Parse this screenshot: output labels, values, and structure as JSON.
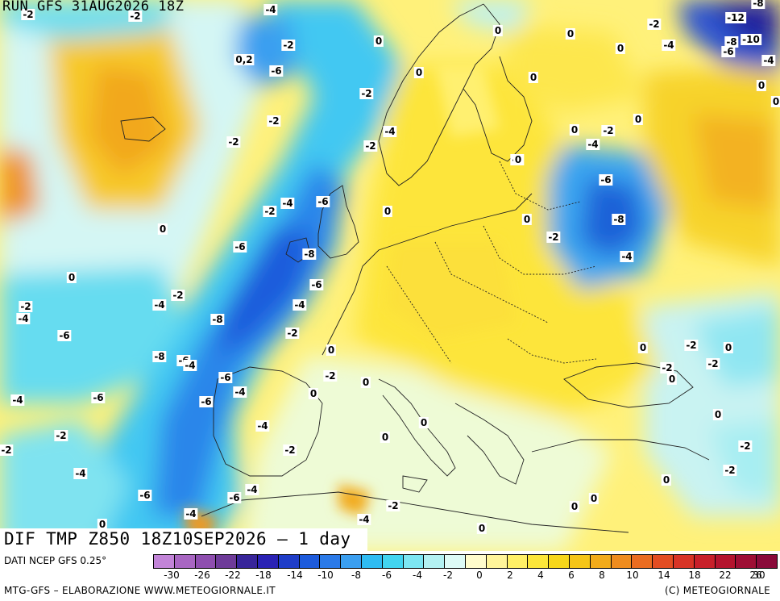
{
  "header": {
    "run_title": "RUN GFS 31AUG2026 18Z"
  },
  "map": {
    "caption": "DIF TMP Z850 18Z10SEP2026 – 1 day",
    "contour_labels": [
      {
        "text": "-2"
      },
      {
        "text": "-2"
      },
      {
        "text": "-4"
      },
      {
        "text": "-8"
      },
      {
        "text": "-12"
      },
      {
        "text": "-8"
      },
      {
        "text": "-10"
      },
      {
        "text": "-6"
      },
      {
        "text": "-4"
      },
      {
        "text": "-2"
      },
      {
        "text": "0"
      },
      {
        "text": "0"
      },
      {
        "text": "0"
      },
      {
        "text": "-2"
      },
      {
        "text": "-4"
      },
      {
        "text": "0"
      },
      {
        "text": "0"
      },
      {
        "text": "0"
      },
      {
        "text": "0,2"
      },
      {
        "text": "-6"
      },
      {
        "text": "0"
      },
      {
        "text": "-2"
      },
      {
        "text": "-2"
      },
      {
        "text": "0"
      },
      {
        "text": "-2"
      },
      {
        "text": "-4"
      },
      {
        "text": "0"
      },
      {
        "text": "-2"
      },
      {
        "text": "0"
      },
      {
        "text": "-2"
      },
      {
        "text": "-4"
      },
      {
        "text": "-2"
      },
      {
        "text": "0"
      },
      {
        "text": "-6"
      },
      {
        "text": "-6"
      },
      {
        "text": "-4"
      },
      {
        "text": "-2"
      },
      {
        "text": "0"
      },
      {
        "text": "0"
      },
      {
        "text": "-8"
      },
      {
        "text": "-2"
      },
      {
        "text": "0"
      },
      {
        "text": "-6"
      },
      {
        "text": "-8"
      },
      {
        "text": "-4"
      },
      {
        "text": "0"
      },
      {
        "text": "-6"
      },
      {
        "text": "-2"
      },
      {
        "text": "-4"
      },
      {
        "text": "-2"
      },
      {
        "text": "-4"
      },
      {
        "text": "-4"
      },
      {
        "text": "-8"
      },
      {
        "text": "-6"
      },
      {
        "text": "-2"
      },
      {
        "text": "-8"
      },
      {
        "text": "-6"
      },
      {
        "text": "-4"
      },
      {
        "text": "0"
      },
      {
        "text": "0"
      },
      {
        "text": "-2"
      },
      {
        "text": "0"
      },
      {
        "text": "-2"
      },
      {
        "text": "-6"
      },
      {
        "text": "-2"
      },
      {
        "text": "-2"
      },
      {
        "text": "-4"
      },
      {
        "text": "-6"
      },
      {
        "text": "-4"
      },
      {
        "text": "0"
      },
      {
        "text": "0"
      },
      {
        "text": "0"
      },
      {
        "text": "0"
      },
      {
        "text": "-2"
      },
      {
        "text": "-2"
      },
      {
        "text": "-4"
      },
      {
        "text": "-6"
      },
      {
        "text": "-4"
      },
      {
        "text": "0"
      },
      {
        "text": "0"
      },
      {
        "text": "-2"
      },
      {
        "text": "-2"
      },
      {
        "text": "-4"
      },
      {
        "text": "-6"
      },
      {
        "text": "-2"
      },
      {
        "text": "-6"
      },
      {
        "text": "-4"
      },
      {
        "text": "0"
      },
      {
        "text": "0"
      },
      {
        "text": "0"
      },
      {
        "text": "-2"
      },
      {
        "text": "0"
      },
      {
        "text": "0"
      },
      {
        "text": "-4"
      }
    ]
  },
  "legend": {
    "source": "DATI NCEP GFS 0.25°",
    "colors": [
      "#c284d8",
      "#a866c2",
      "#8e4eaf",
      "#6e3b99",
      "#38259a",
      "#2a22b4",
      "#1f3dc8",
      "#1d5bdc",
      "#2b7ae8",
      "#3b9ff0",
      "#2fbcf2",
      "#42d5f0",
      "#7de6f2",
      "#b3f1f2",
      "#ddfaf6",
      "#fffccc",
      "#fff59a",
      "#fff066",
      "#fce63a",
      "#f7d71a",
      "#f5c518",
      "#f2ab1a",
      "#ef8c1e",
      "#ea6c20",
      "#e34d22",
      "#d83426",
      "#c8202a",
      "#b4142e",
      "#9e0e34",
      "#8a0a3a"
    ],
    "ticks": [
      "-30",
      "-26",
      "-22",
      "-18",
      "-14",
      "-10",
      "-8",
      "-6",
      "-4",
      "-2",
      "0",
      "2",
      "4",
      "6",
      "8",
      "10",
      "14",
      "18",
      "22",
      "26",
      "30"
    ]
  },
  "footer": {
    "credit": "MTG-GFS – ELABORAZIONE WWW.METEOGIORNALE.IT",
    "copyright": "(C) METEOGIORNALE"
  }
}
